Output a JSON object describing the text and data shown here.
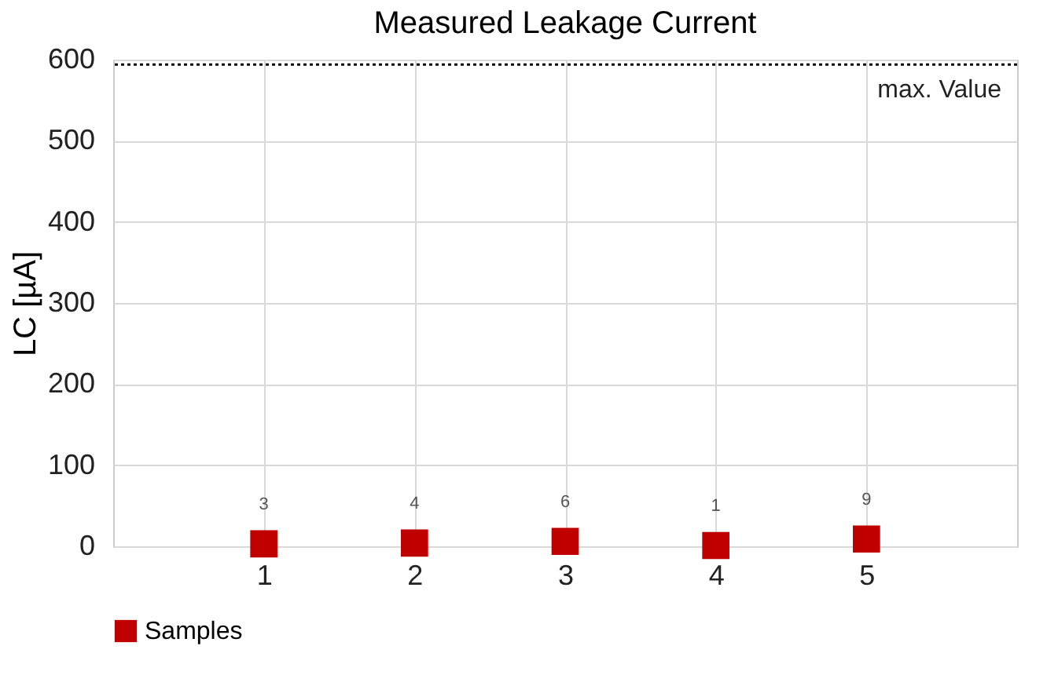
{
  "chart_data": {
    "type": "scatter",
    "title": "Measured Leakage Current",
    "ylabel": "LC [µA]",
    "x": [
      1,
      2,
      3,
      4,
      5
    ],
    "series": [
      {
        "name": "Samples",
        "color": "#c00000",
        "values": [
          3,
          4,
          6,
          1,
          9
        ]
      }
    ],
    "xlim": [
      0,
      6
    ],
    "xticks": [
      1,
      2,
      3,
      4,
      5
    ],
    "ylim": [
      0,
      600
    ],
    "yticks": [
      0,
      100,
      200,
      300,
      400,
      500,
      600
    ],
    "ref_lines": [
      {
        "axis": "y",
        "value": 594,
        "label": "max. Value",
        "color": "#000000",
        "line_style": "dotted"
      }
    ],
    "grid": true,
    "legend": "bottom",
    "marker": "square",
    "data_labels": true
  }
}
